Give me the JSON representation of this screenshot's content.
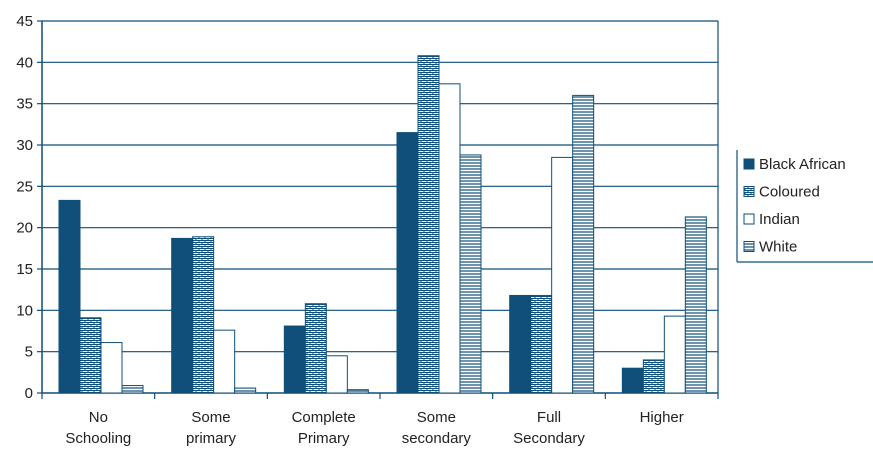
{
  "chart_data": {
    "type": "bar",
    "categories": [
      [
        "No",
        "Schooling"
      ],
      [
        "Some",
        "primary"
      ],
      [
        "Complete",
        "Primary"
      ],
      [
        "Some",
        "secondary"
      ],
      [
        "Full",
        "Secondary"
      ],
      [
        "Higher"
      ]
    ],
    "series": [
      {
        "name": "Black African",
        "pattern": "solid",
        "color": "#0f4f79",
        "values": [
          23.3,
          18.7,
          8.1,
          31.5,
          11.8,
          3.0
        ]
      },
      {
        "name": "Coloured",
        "pattern": "brick",
        "color": "#0f4f79",
        "values": [
          9.1,
          18.9,
          10.8,
          40.8,
          11.8,
          4.0
        ]
      },
      {
        "name": "Indian",
        "pattern": "empty",
        "color": "#0f4f79",
        "values": [
          6.1,
          7.6,
          4.5,
          37.4,
          28.5,
          9.3
        ]
      },
      {
        "name": "White",
        "pattern": "hlines",
        "color": "#0f4f79",
        "values": [
          0.9,
          0.6,
          0.4,
          28.8,
          36.0,
          21.3
        ]
      }
    ],
    "ylim": [
      0,
      45
    ],
    "yticks": [
      0,
      5,
      10,
      15,
      20,
      25,
      30,
      35,
      40,
      45
    ],
    "grid": true,
    "legend_position": "right",
    "title": "",
    "xlabel": "",
    "ylabel": ""
  }
}
